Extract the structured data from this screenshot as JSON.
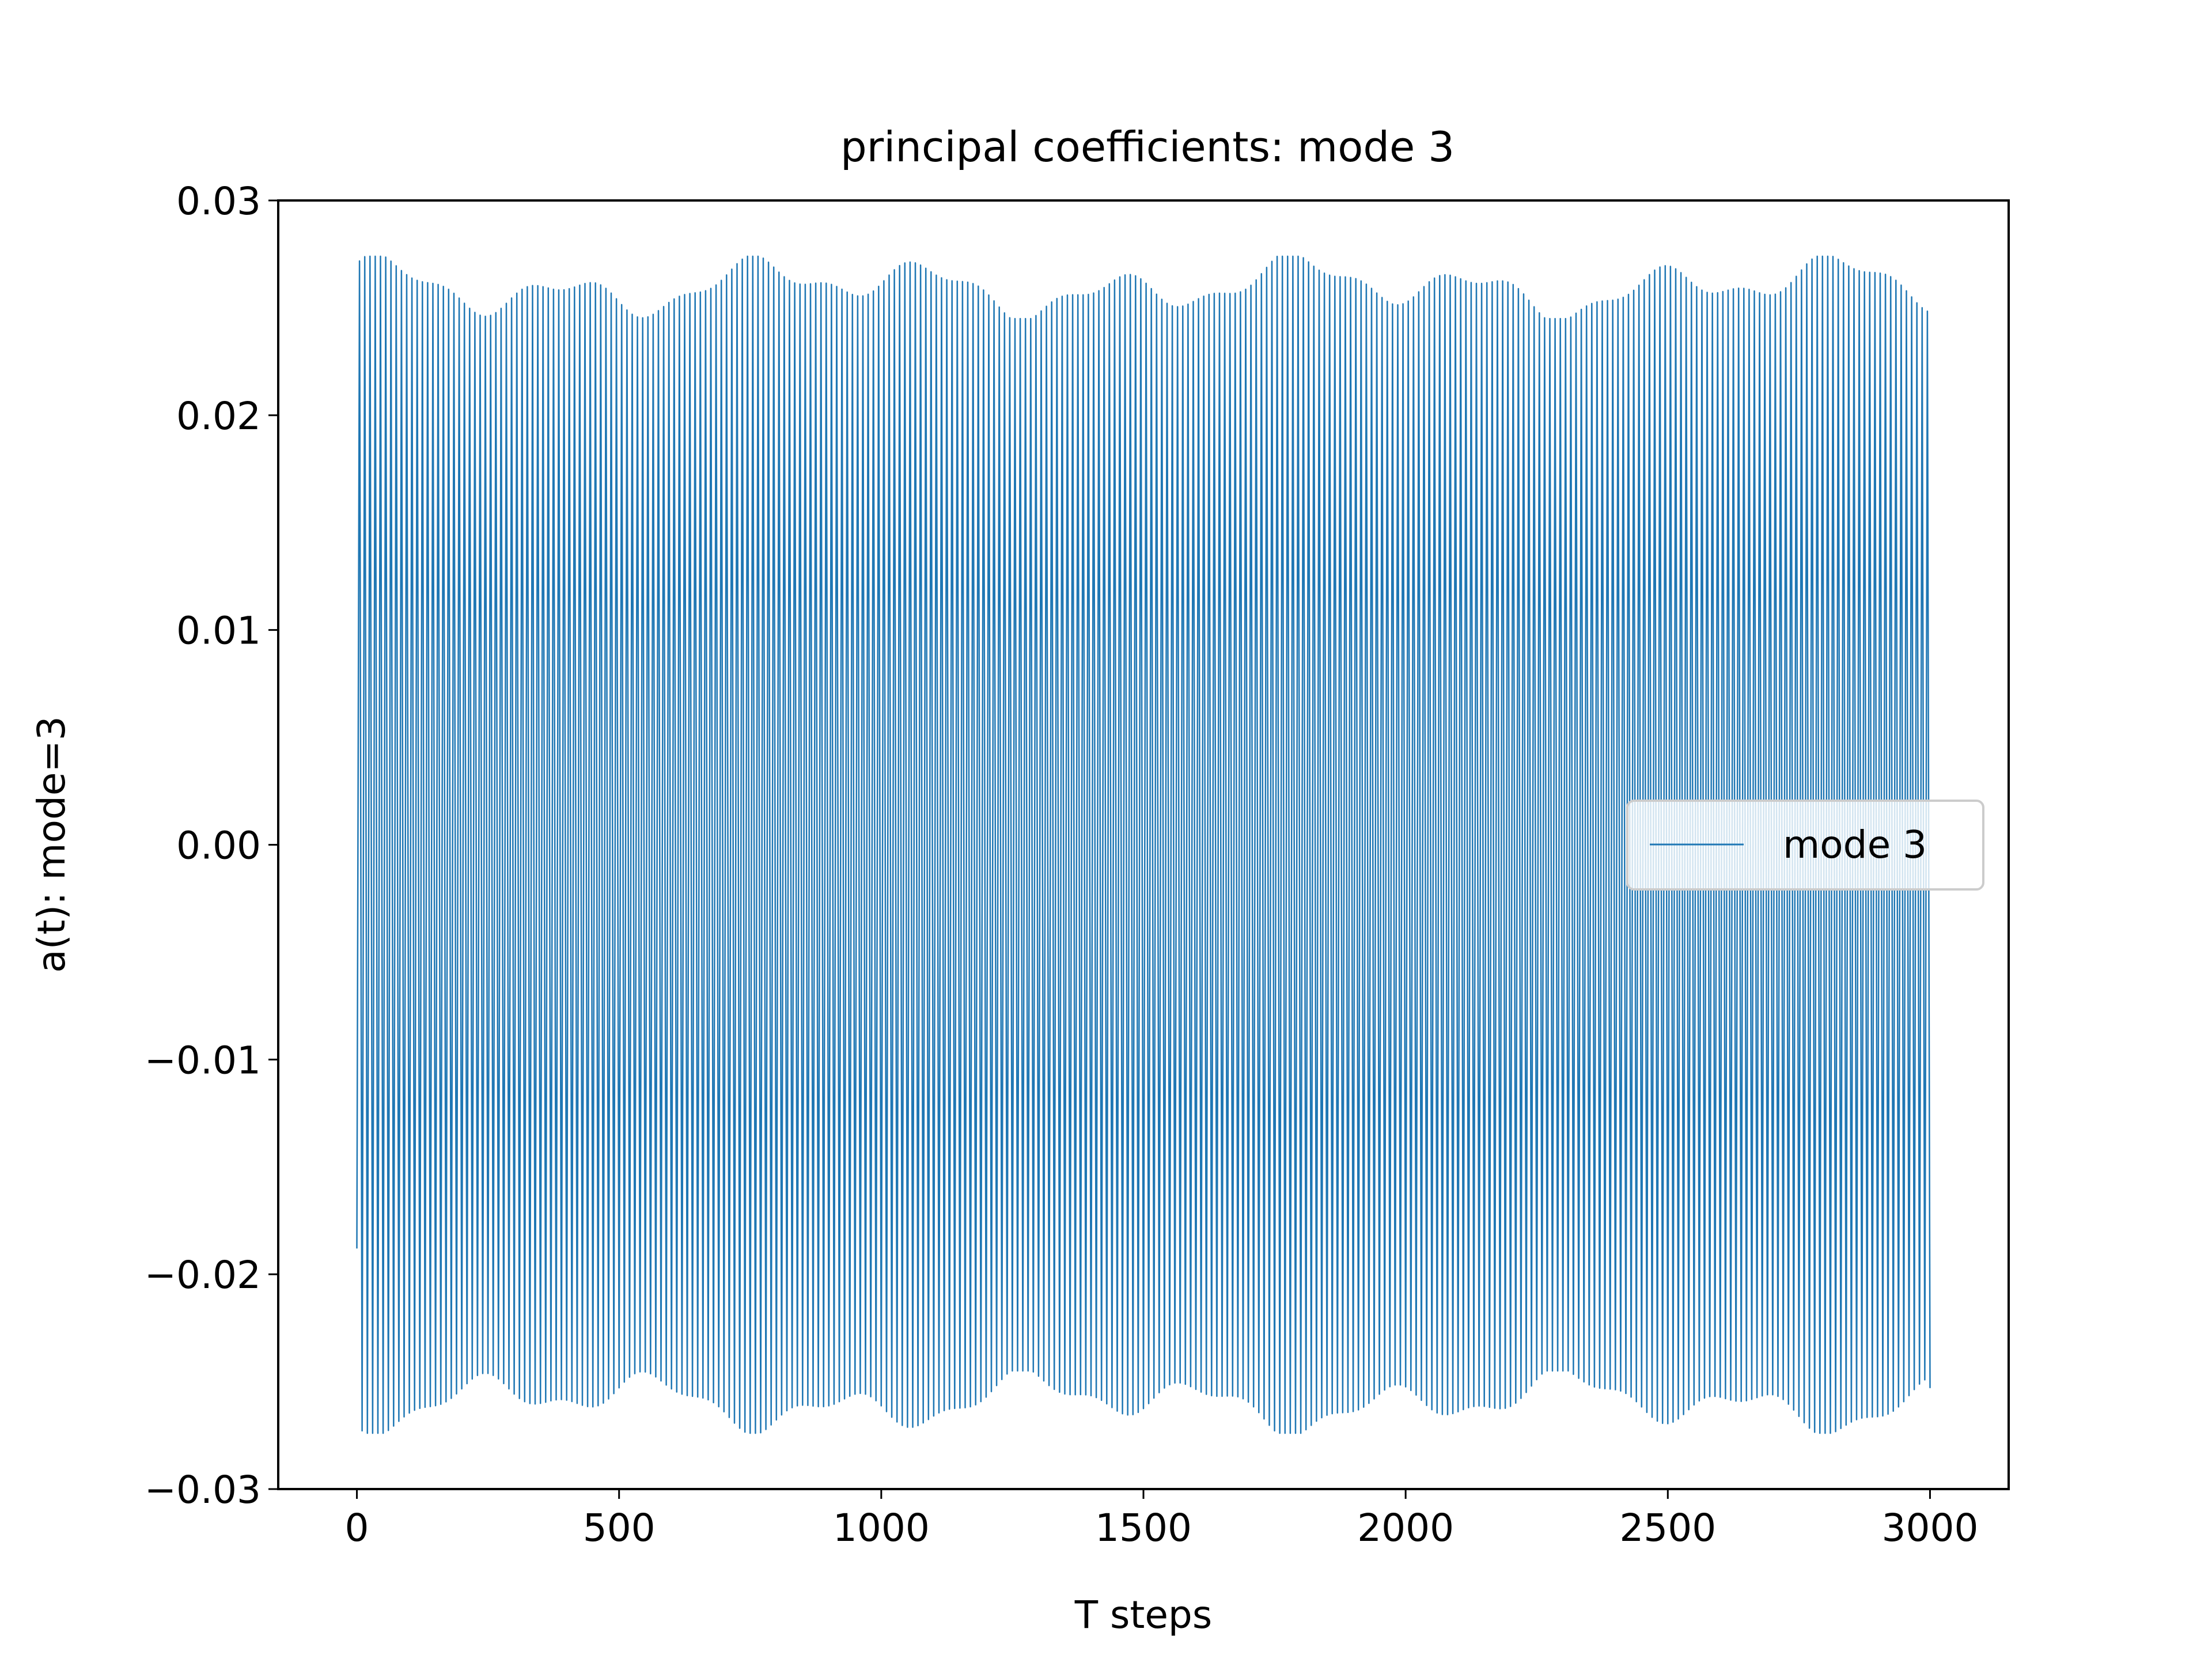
{
  "chart_data": {
    "type": "line",
    "title": "principal coefficients: mode 3",
    "xlabel": "T steps",
    "ylabel": "a(t): mode=3",
    "xlim": [
      -150,
      3150
    ],
    "ylim": [
      -0.03,
      0.03
    ],
    "x_ticks": [
      {
        "value": 0,
        "label": "0"
      },
      {
        "value": 500,
        "label": "500"
      },
      {
        "value": 1000,
        "label": "1000"
      },
      {
        "value": 1500,
        "label": "1500"
      },
      {
        "value": 2000,
        "label": "2000"
      },
      {
        "value": 2500,
        "label": "2500"
      },
      {
        "value": 3000,
        "label": "3000"
      }
    ],
    "y_ticks": [
      {
        "value": 0.03,
        "label": "0.03"
      },
      {
        "value": 0.02,
        "label": "0.02"
      },
      {
        "value": 0.01,
        "label": "0.01"
      },
      {
        "value": 0.0,
        "label": "0.00"
      },
      {
        "value": -0.01,
        "label": "−0.01"
      },
      {
        "value": -0.02,
        "label": "−0.02"
      },
      {
        "value": -0.03,
        "label": "−0.03"
      }
    ],
    "grid": false,
    "legend": {
      "position": "center-right",
      "entries": [
        "mode 3"
      ]
    },
    "series": [
      {
        "name": "mode 3",
        "color": "#1f77b4",
        "x_start": 0,
        "x_end": 3000,
        "start_value": -0.0188,
        "oscillation_period_steps": 10,
        "amplitude_range": [
          0.0245,
          0.0274
        ],
        "end_value": -0.0253
      }
    ]
  }
}
